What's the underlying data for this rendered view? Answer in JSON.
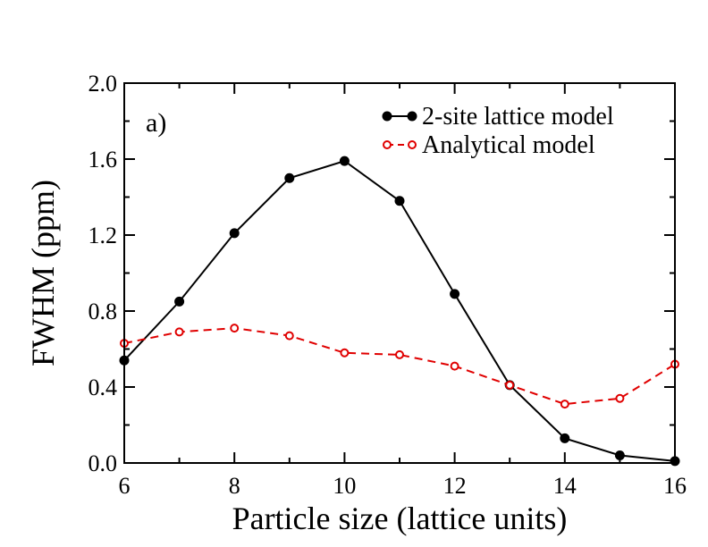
{
  "chart_data": {
    "type": "line",
    "title": "",
    "panel_label": "a)",
    "xlabel": "Particle size (lattice units)",
    "ylabel": "FWHM (ppm)",
    "xlim": [
      6,
      16
    ],
    "ylim": [
      0.0,
      2.0
    ],
    "x_ticks": [
      6,
      8,
      10,
      12,
      14,
      16
    ],
    "x_tick_labels": [
      "6",
      "8",
      "10",
      "12",
      "14",
      "16"
    ],
    "y_ticks": [
      0.0,
      0.4,
      0.8,
      1.2,
      1.6,
      2.0
    ],
    "y_tick_labels": [
      "0.0",
      "0.4",
      "0.8",
      "1.2",
      "1.6",
      "2.0"
    ],
    "grid": false,
    "legend_position": "top-right",
    "series": [
      {
        "name": "2-site lattice model",
        "color": "#000000",
        "line_style": "solid",
        "marker": "filled-circle",
        "x": [
          6,
          7,
          8,
          9,
          10,
          11,
          12,
          13,
          14,
          15,
          16
        ],
        "values": [
          0.54,
          0.85,
          1.21,
          1.5,
          1.59,
          1.38,
          0.89,
          0.41,
          0.13,
          0.04,
          0.01
        ]
      },
      {
        "name": "Analytical model",
        "color": "#e00000",
        "line_style": "dashed",
        "marker": "open-circle",
        "x": [
          6,
          7,
          8,
          9,
          10,
          11,
          12,
          13,
          14,
          15,
          16
        ],
        "values": [
          0.63,
          0.69,
          0.71,
          0.67,
          0.58,
          0.57,
          0.51,
          0.41,
          0.31,
          0.34,
          0.52
        ]
      }
    ]
  }
}
